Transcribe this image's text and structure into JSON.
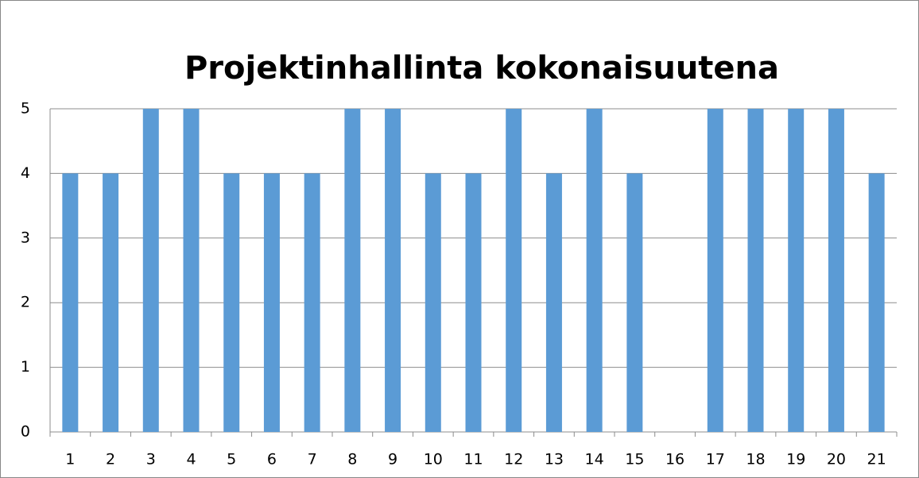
{
  "chart_data": {
    "type": "bar",
    "title": "Projektinhallinta kokonaisuutena",
    "categories": [
      "1",
      "2",
      "3",
      "4",
      "5",
      "6",
      "7",
      "8",
      "9",
      "10",
      "11",
      "12",
      "13",
      "14",
      "15",
      "16",
      "17",
      "18",
      "19",
      "20",
      "21"
    ],
    "values": [
      4,
      4,
      5,
      5,
      4,
      4,
      4,
      5,
      5,
      4,
      4,
      5,
      4,
      5,
      4,
      0,
      5,
      5,
      5,
      5,
      4
    ],
    "color": "#5b9bd5",
    "ylim": [
      0,
      5
    ],
    "yticks": [
      0,
      1,
      2,
      3,
      4,
      5
    ],
    "grid": true
  }
}
